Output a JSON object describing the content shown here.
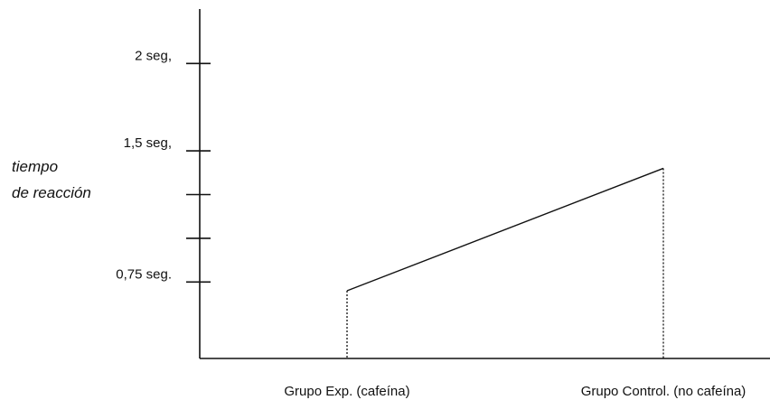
{
  "chart_data": {
    "type": "line",
    "ylabel_lines": [
      "tiempo",
      "de reacción"
    ],
    "categories": [
      "Grupo Exp. (cafeína)",
      "Grupo Control. (no cafeína)"
    ],
    "series": [
      {
        "values": [
          0.7,
          1.4
        ]
      }
    ],
    "yticks": [
      {
        "value": 0.75,
        "label": "0,75  seg."
      },
      {
        "value": 1.0,
        "label": ""
      },
      {
        "value": 1.25,
        "label": ""
      },
      {
        "value": 1.5,
        "label": "1,5 seg,"
      },
      {
        "value": 2.0,
        "label": "2 seg,"
      }
    ],
    "ylim": [
      0.4,
      2.2
    ],
    "grid": false,
    "colors": {
      "axis": "#111111",
      "line": "#111111",
      "dropline": "#111111"
    }
  }
}
